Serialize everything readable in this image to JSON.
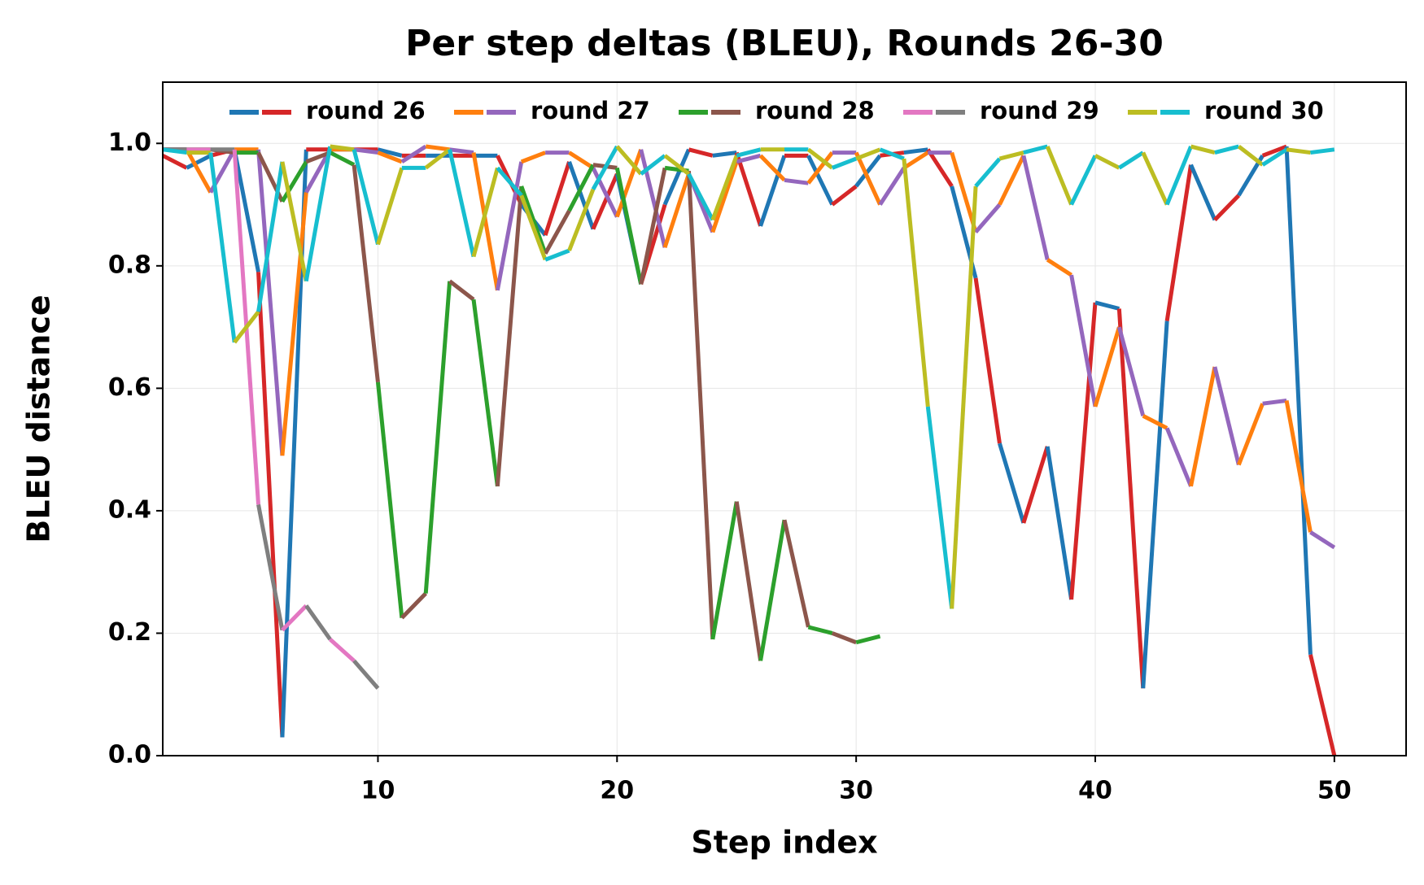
{
  "chart_data": {
    "type": "line",
    "title": "Per step deltas (BLEU), Rounds 26-30",
    "xlabel": "Step index",
    "ylabel": "BLEU distance",
    "x": [
      1,
      2,
      3,
      4,
      5,
      6,
      7,
      8,
      9,
      10,
      11,
      12,
      13,
      14,
      15,
      16,
      17,
      18,
      19,
      20,
      21,
      22,
      23,
      24,
      25,
      26,
      27,
      28,
      29,
      30,
      31,
      32,
      33,
      34,
      35,
      36,
      37,
      38,
      39,
      40,
      41,
      42,
      43,
      44,
      45,
      46,
      47,
      48,
      49,
      50
    ],
    "xlim": [
      1,
      53
    ],
    "ylim": [
      0,
      1.1
    ],
    "xticks": [
      10,
      20,
      30,
      40,
      50
    ],
    "yticks": [
      {
        "value": 0,
        "label": "0.0"
      },
      0.2,
      0.4,
      0.6,
      0.8,
      {
        "value": 1,
        "label": "1.0"
      }
    ],
    "grid": true,
    "legend": "top",
    "series": [
      {
        "name": "round 26",
        "colors": [
          "#1f77b4",
          "#d62728"
        ],
        "values": [
          0.98,
          0.96,
          0.98,
          0.99,
          0.79,
          0.03,
          0.99,
          0.99,
          0.99,
          0.99,
          0.98,
          0.98,
          0.98,
          0.98,
          0.98,
          0.9,
          0.85,
          0.97,
          0.86,
          0.95,
          0.77,
          0.9,
          0.99,
          0.98,
          0.985,
          0.865,
          0.98,
          0.98,
          0.9,
          0.93,
          0.98,
          0.985,
          0.99,
          0.93,
          0.78,
          0.51,
          0.38,
          0.505,
          0.255,
          0.74,
          0.73,
          0.11,
          0.71,
          0.965,
          0.875,
          0.915,
          0.98,
          0.995,
          0.165,
          0.0
        ]
      },
      {
        "name": "round 27",
        "colors": [
          "#ff7f0e",
          "#9467bd"
        ],
        "values": [
          0.99,
          0.99,
          0.92,
          0.99,
          0.99,
          0.49,
          0.92,
          0.99,
          0.99,
          0.985,
          0.97,
          0.995,
          0.99,
          0.985,
          0.76,
          0.97,
          0.985,
          0.985,
          0.96,
          0.88,
          0.99,
          0.83,
          0.95,
          0.855,
          0.97,
          0.98,
          0.94,
          0.935,
          0.985,
          0.985,
          0.9,
          0.96,
          0.985,
          0.985,
          0.855,
          0.9,
          0.98,
          0.81,
          0.785,
          0.57,
          0.7,
          0.555,
          0.535,
          0.44,
          0.635,
          0.475,
          0.575,
          0.58,
          0.365,
          0.34
        ]
      },
      {
        "name": "round 28",
        "colors": [
          "#2ca02c",
          "#8c564b"
        ],
        "values": [
          0.99,
          0.99,
          0.99,
          0.985,
          0.985,
          0.905,
          0.97,
          0.985,
          0.965,
          0.61,
          0.225,
          0.265,
          0.775,
          0.745,
          0.44,
          0.93,
          0.82,
          0.89,
          0.965,
          0.96,
          0.77,
          0.96,
          0.955,
          0.19,
          0.415,
          0.155,
          0.385,
          0.21,
          0.2,
          0.185,
          0.195,
          null,
          null,
          null,
          null,
          null,
          null,
          null,
          null,
          null,
          null,
          null,
          null,
          null,
          null,
          null,
          null,
          null,
          null,
          null
        ]
      },
      {
        "name": "round 29",
        "colors": [
          "#e377c2",
          "#7f7f7f"
        ],
        "values": [
          0.99,
          0.99,
          0.99,
          0.99,
          0.41,
          0.205,
          0.245,
          0.19,
          0.155,
          0.11,
          null,
          null,
          null,
          null,
          null,
          null,
          null,
          null,
          null,
          null,
          null,
          null,
          null,
          null,
          null,
          null,
          null,
          null,
          null,
          null,
          null,
          null,
          null,
          null,
          null,
          null,
          null,
          null,
          null,
          null,
          null,
          null,
          null,
          null,
          null,
          null,
          null,
          null,
          null,
          null
        ]
      },
      {
        "name": "round 30",
        "colors": [
          "#bcbd22",
          "#17becf"
        ],
        "values": [
          0.99,
          0.985,
          0.985,
          0.675,
          0.725,
          0.97,
          0.775,
          0.995,
          0.99,
          0.835,
          0.96,
          0.96,
          0.99,
          0.815,
          0.96,
          0.915,
          0.81,
          0.825,
          0.925,
          0.995,
          0.95,
          0.98,
          0.95,
          0.875,
          0.98,
          0.99,
          0.99,
          0.99,
          0.96,
          0.975,
          0.99,
          0.975,
          0.57,
          0.24,
          0.93,
          0.975,
          0.985,
          0.995,
          0.9,
          0.98,
          0.96,
          0.985,
          0.9,
          0.995,
          0.985,
          0.995,
          0.965,
          0.99,
          0.985,
          0.99
        ]
      }
    ]
  }
}
